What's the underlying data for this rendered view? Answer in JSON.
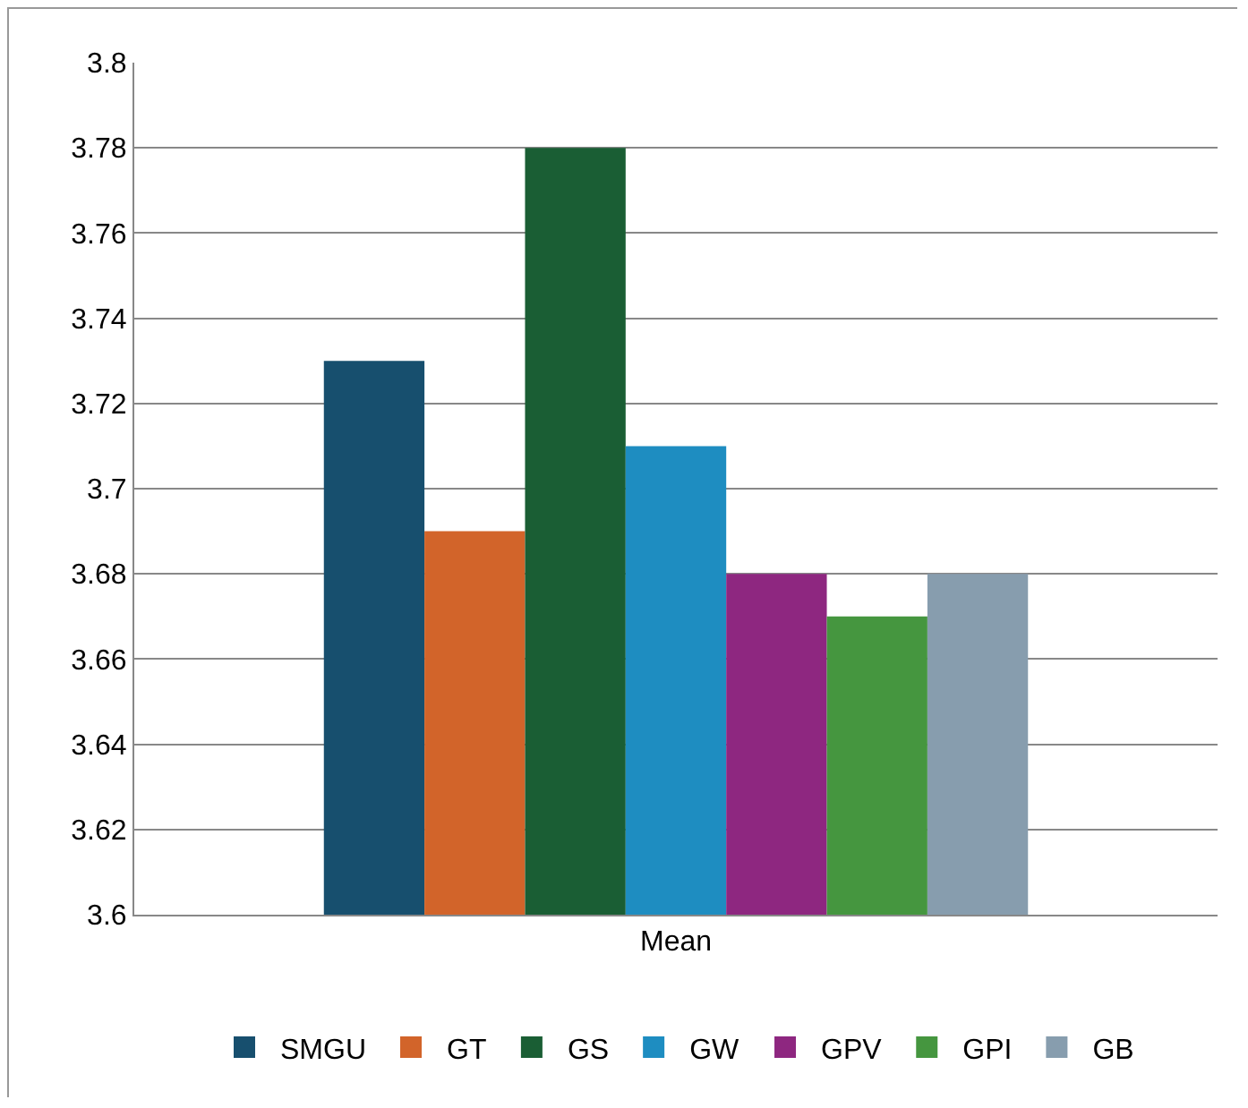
{
  "chart_data": {
    "type": "bar",
    "categories": [
      "Mean"
    ],
    "series": [
      {
        "name": "SMGU",
        "color": "#174f6e",
        "values": [
          3.73
        ]
      },
      {
        "name": "GT",
        "color": "#d2642a",
        "values": [
          3.69
        ]
      },
      {
        "name": "GS",
        "color": "#1a5e34",
        "values": [
          3.78
        ]
      },
      {
        "name": "GW",
        "color": "#1e8dc1",
        "values": [
          3.71
        ]
      },
      {
        "name": "GPV",
        "color": "#8e2780",
        "values": [
          3.68
        ]
      },
      {
        "name": "GPI",
        "color": "#45963f",
        "values": [
          3.67
        ]
      },
      {
        "name": "GB",
        "color": "#879dae",
        "values": [
          3.68
        ]
      }
    ],
    "ylim": [
      3.6,
      3.8
    ],
    "yticks": [
      3.6,
      3.62,
      3.64,
      3.66,
      3.68,
      3.7,
      3.72,
      3.74,
      3.76,
      3.78,
      3.8
    ],
    "grid": "y",
    "legend": "bottom"
  }
}
